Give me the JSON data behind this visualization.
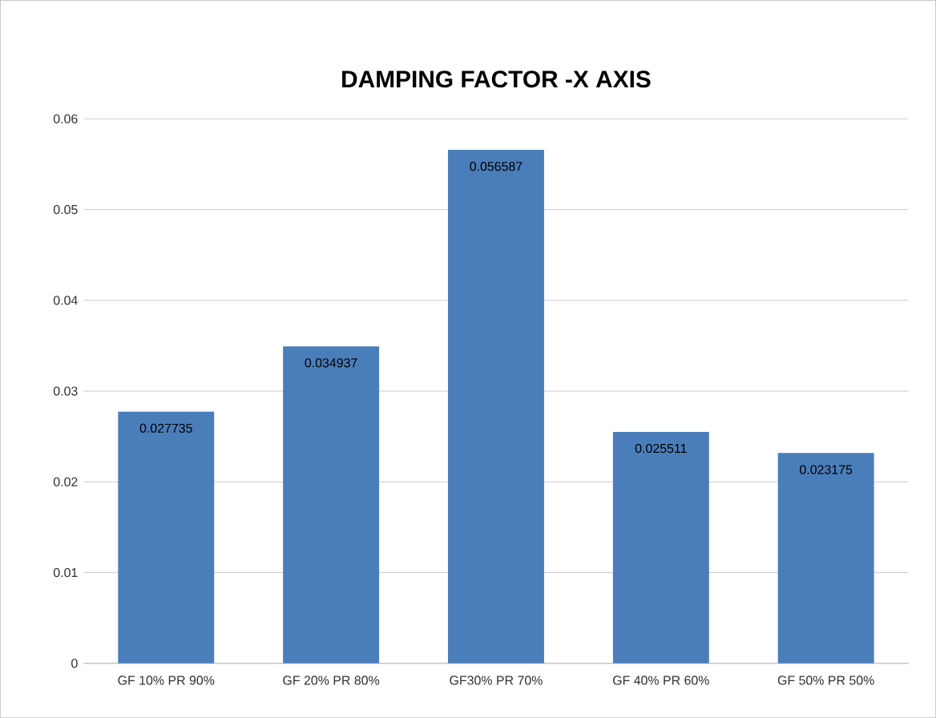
{
  "chart_data": {
    "type": "bar",
    "title": "DAMPING FACTOR -X AXIS",
    "categories": [
      "GF 10% PR 90%",
      "GF 20% PR 80%",
      "GF30% PR 70%",
      "GF 40% PR 60%",
      "GF 50% PR 50%"
    ],
    "values": [
      0.027735,
      0.034937,
      0.056587,
      0.025511,
      0.023175
    ],
    "color": "#4a7ebb",
    "ylim": [
      0,
      0.06
    ],
    "yticks": [
      0,
      0.01,
      0.02,
      0.03,
      0.04,
      0.05,
      0.06
    ],
    "grid": "y",
    "data_labels": true
  }
}
